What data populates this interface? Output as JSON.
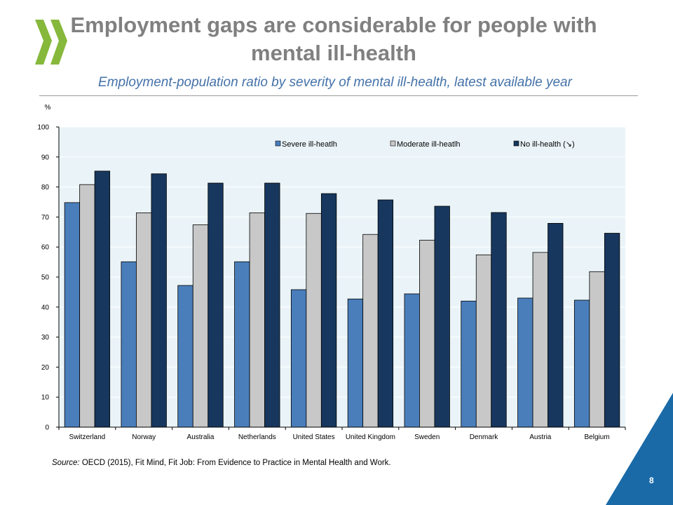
{
  "slide": {
    "title": "Employment gaps are considerable for people with mental ill-health",
    "subtitle": "Employment-population ratio by severity of mental ill-health, latest available year",
    "source_label": "Source:",
    "source_text": "OECD (2015), Fit Mind, Fit Job: From Evidence to Practice in Mental Health and Work.",
    "page_number": "8",
    "colors": {
      "title": "#808080",
      "subtitle": "#4472a8",
      "logo": "#86b83c",
      "corner": "#1a6aa8"
    }
  },
  "chart_data": {
    "type": "bar",
    "title": "",
    "xlabel": "",
    "ylabel": "%",
    "ylim": [
      0,
      100
    ],
    "yticks": [
      0,
      10,
      20,
      30,
      40,
      50,
      60,
      70,
      80,
      90,
      100
    ],
    "grid": true,
    "legend_position": "top-right",
    "categories": [
      "Switzerland",
      "Norway",
      "Australia",
      "Netherlands",
      "United States",
      "United Kingdom",
      "Sweden",
      "Denmark",
      "Austria",
      "Belgium"
    ],
    "series": [
      {
        "name": "Severe ill-heatlh",
        "color": "#4a7ebb",
        "values": [
          74.8,
          55.1,
          47.2,
          55.1,
          45.8,
          42.7,
          44.4,
          42.0,
          43.0,
          42.3
        ]
      },
      {
        "name": "Moderate ill-heatlh",
        "color": "#c8c8c8",
        "values": [
          80.8,
          71.4,
          67.4,
          71.4,
          71.2,
          64.2,
          62.3,
          57.4,
          58.2,
          51.8
        ]
      },
      {
        "name": "No ill-health (↘)",
        "color": "#17375e",
        "values": [
          85.3,
          84.4,
          81.3,
          81.3,
          77.8,
          75.7,
          73.6,
          71.5,
          67.9,
          64.6
        ]
      }
    ],
    "plot_background": "#eaf4f8"
  }
}
